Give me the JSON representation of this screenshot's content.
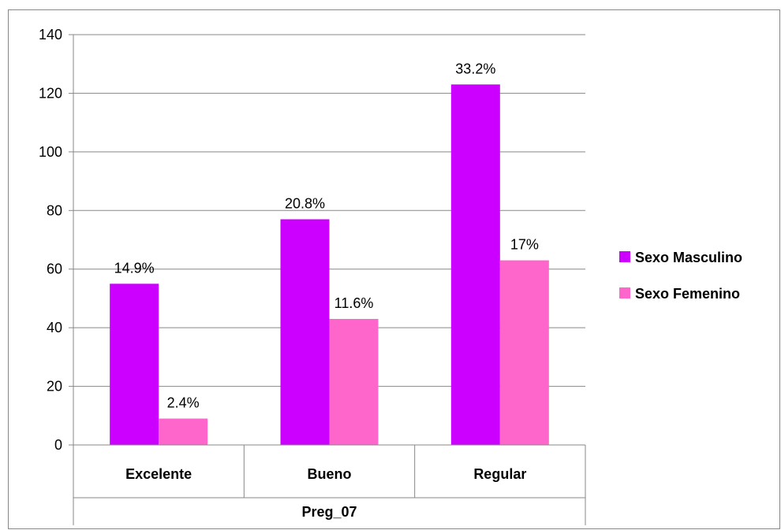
{
  "chart_data": {
    "type": "bar",
    "title": "",
    "xlabel": "Preg_07",
    "ylabel": "",
    "categories": [
      "Excelente",
      "Bueno",
      "Regular"
    ],
    "series": [
      {
        "name": "Sexo Masculino",
        "color": "#CC00FF",
        "values": [
          55,
          77,
          123
        ],
        "labels": [
          "14.9%",
          "20.8%",
          "33.2%"
        ]
      },
      {
        "name": "Sexo Femenino",
        "color": "#FF66CC",
        "values": [
          9,
          43,
          63
        ],
        "labels": [
          "2.4%",
          "11.6%",
          "17%"
        ]
      }
    ],
    "ylim": [
      0,
      140
    ],
    "yticks": [
      0,
      20,
      40,
      60,
      80,
      100,
      120,
      140
    ],
    "grid": true,
    "legend_position": "right"
  }
}
